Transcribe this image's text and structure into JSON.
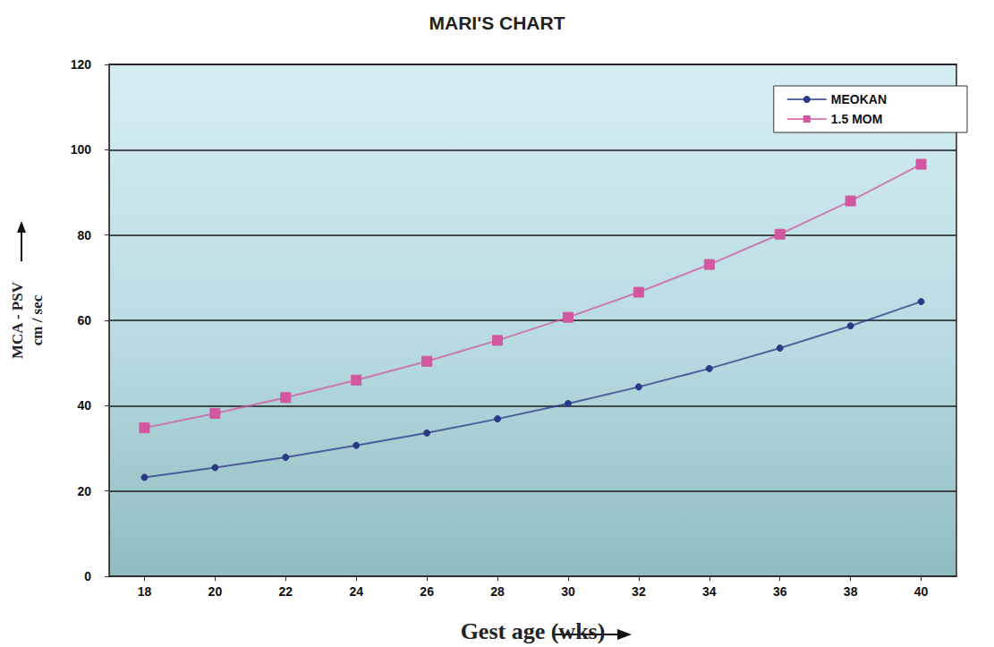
{
  "chart_data": {
    "type": "line",
    "title": "MARI'S CHART",
    "xlabel": "Gest age (wks)",
    "ylabel": "MCA - PSV\ncm / sec",
    "categories": [
      "18",
      "20",
      "22",
      "24",
      "26",
      "28",
      "30",
      "32",
      "34",
      "36",
      "38",
      "40"
    ],
    "series": [
      {
        "name": "MEOKAN",
        "color": "#2b3a86",
        "marker": "circle",
        "line_style": "solid",
        "values": [
          23.2,
          25.5,
          27.9,
          30.7,
          33.6,
          36.9,
          40.5,
          44.4,
          48.7,
          53.5,
          58.7,
          64.4
        ]
      },
      {
        "name": "1.5 MOM",
        "color": "#d2579f",
        "marker": "square",
        "line_style": "solid",
        "values": [
          34.8,
          38.2,
          41.9,
          46.0,
          50.4,
          55.3,
          60.7,
          66.6,
          73.1,
          80.2,
          88.0,
          96.6
        ]
      }
    ],
    "ylim": [
      0,
      120
    ],
    "yticks": [
      0,
      20,
      40,
      60,
      80,
      100,
      120
    ],
    "grid": true,
    "legend": "upper right"
  }
}
